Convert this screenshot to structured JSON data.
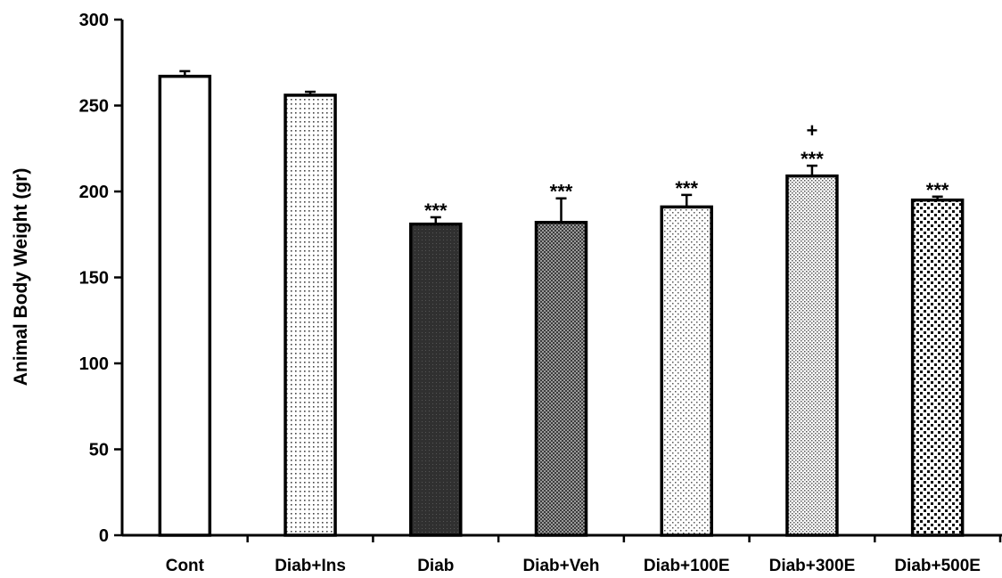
{
  "chart_data": {
    "type": "bar",
    "title": "",
    "xlabel": "",
    "ylabel": "Animal Body Weight (gr)",
    "ylim": [
      0,
      300
    ],
    "yticks": [
      "0",
      "50",
      "100",
      "150",
      "200",
      "250",
      "300"
    ],
    "grid": false,
    "categories": [
      "Cont",
      "Diab+Ins",
      "Diab",
      "Diab+Veh",
      "Diab+100E",
      "Diab+300E",
      "Diab+500E"
    ],
    "values": [
      267,
      256,
      181,
      182,
      191,
      209,
      195
    ],
    "errors": [
      3,
      2,
      4,
      14,
      7,
      6,
      2
    ],
    "annotations": [
      "",
      "",
      "***",
      "***",
      "***",
      "+\n***",
      "***"
    ],
    "fills": [
      "white",
      "dots-fine",
      "dark",
      "checker-gray",
      "dots-sparse",
      "dots-dense",
      "dots-large"
    ]
  }
}
